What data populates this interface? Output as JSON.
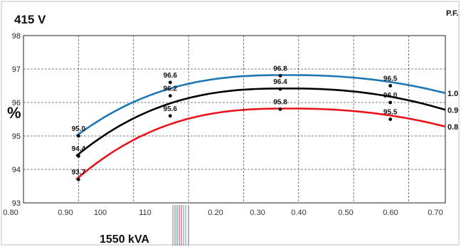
{
  "header": {
    "voltage": "415 V",
    "pf_heading": "P.F.",
    "rating": "1550 kVA"
  },
  "chart_data": {
    "type": "line",
    "title": "415 V",
    "subtitle": "1550 kVA",
    "ylabel": "%",
    "xlabel": "",
    "ylim": [
      93,
      98
    ],
    "yticks": [
      93,
      94,
      95,
      96,
      97,
      98
    ],
    "xtick_labels": [
      "0.80",
      "0.90",
      "100",
      "110",
      "0.20",
      "0.30",
      "0.40",
      "0.50",
      "0.60",
      "0.70"
    ],
    "legend_title": "P.F.",
    "grid": true,
    "series": [
      {
        "name": "1.0",
        "color": "#1f77b4",
        "x": [
          0.92,
          1.12,
          1.36,
          1.6
        ],
        "values": [
          95.0,
          96.6,
          96.8,
          96.5
        ],
        "labels": [
          "95.0",
          "96.6",
          "96.8",
          "96.5"
        ]
      },
      {
        "name": "0.9",
        "color": "#000000",
        "x": [
          0.92,
          1.12,
          1.36,
          1.6
        ],
        "values": [
          94.4,
          96.2,
          96.4,
          96.0
        ],
        "labels": [
          "94.4",
          "96.2",
          "96.4",
          "96.0"
        ]
      },
      {
        "name": "0.8",
        "color": "#e8141c",
        "x": [
          0.92,
          1.12,
          1.36,
          1.6
        ],
        "values": [
          93.7,
          95.6,
          95.8,
          95.5
        ],
        "labels": [
          "93.7",
          "95.6",
          "95.8",
          "95.5"
        ]
      }
    ]
  }
}
